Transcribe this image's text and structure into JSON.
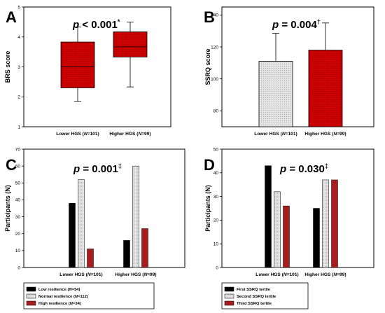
{
  "chart_data": [
    {
      "panel": "A",
      "type": "box",
      "p_value": "p < 0.001",
      "p_mark": "*",
      "ylabel": "BRS score",
      "ylim": [
        1,
        5
      ],
      "yticks": [
        1,
        2,
        3,
        4,
        5
      ],
      "categories": [
        "Lower HGS (N=101)",
        "Higher HGS (N=99)"
      ],
      "boxes": [
        {
          "min": 1.85,
          "q1": 2.3,
          "median": 3.0,
          "q3": 3.83,
          "max": 4.33,
          "color": "#cc0000",
          "label_color": "#cc0000"
        },
        {
          "min": 2.33,
          "q1": 3.33,
          "median": 3.67,
          "q3": 4.17,
          "max": 4.5,
          "color": "#cc0000",
          "label_color": "#000000"
        }
      ]
    },
    {
      "panel": "B",
      "type": "bar",
      "p_value": "p = 0.004",
      "p_mark": "†",
      "ylabel": "SSRQ score",
      "ylim": [
        70,
        145
      ],
      "yticks": [
        80,
        100,
        120,
        140
      ],
      "categories": [
        "Lower HGS (N=101)",
        "Higher HGS (N=99)"
      ],
      "values": [
        111,
        118
      ],
      "errors": [
        17.5,
        17
      ],
      "colors": [
        "#e0e0e0",
        "#cc0000"
      ],
      "patterns": [
        "dots",
        "dots"
      ]
    },
    {
      "panel": "C",
      "type": "bar",
      "p_value": "p = 0.001",
      "p_mark": "‡",
      "ylabel": "Participants (N)",
      "ylim": [
        0,
        70
      ],
      "yticks": [
        0,
        10,
        20,
        30,
        40,
        50,
        60,
        70
      ],
      "categories": [
        "Lower HGS (N=101)",
        "Higher HGS (N=99)"
      ],
      "series": [
        {
          "name": "Low resilience (N=54)",
          "values": [
            38,
            16
          ],
          "color": "#000000"
        },
        {
          "name": "Normal resilience (N=112)",
          "values": [
            52,
            60
          ],
          "color": "#dcdcdc"
        },
        {
          "name": "High resilience (N=34)",
          "values": [
            11,
            23
          ],
          "color": "#a81e1e"
        }
      ]
    },
    {
      "panel": "D",
      "type": "bar",
      "p_value": "p = 0.030",
      "p_mark": "‡",
      "ylabel": "Participants (N)",
      "ylim": [
        0,
        50
      ],
      "yticks": [
        0,
        10,
        20,
        30,
        40,
        50
      ],
      "categories": [
        "Lower HGS (N=101)",
        "Higher HGS (N=99)"
      ],
      "series": [
        {
          "name": "First SSRQ tertile",
          "values": [
            43,
            25
          ],
          "color": "#000000"
        },
        {
          "name": "Second SSRQ tertile",
          "values": [
            32,
            37
          ],
          "color": "#dcdcdc"
        },
        {
          "name": "Third SSRQ tertile",
          "values": [
            26,
            37
          ],
          "color": "#a81e1e"
        }
      ]
    }
  ]
}
